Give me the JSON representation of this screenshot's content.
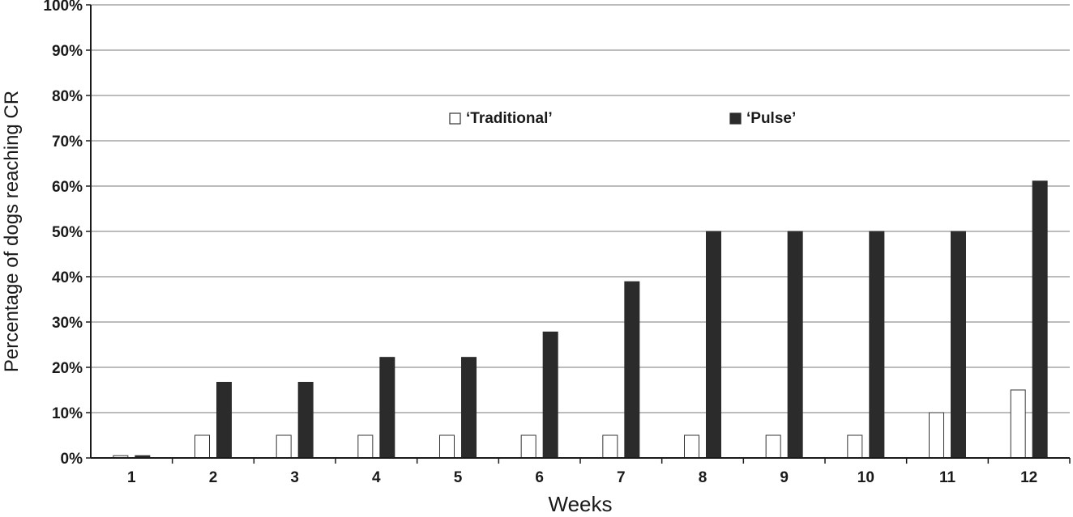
{
  "chart_data": {
    "type": "bar",
    "xlabel": "Weeks",
    "ylabel": "Percentage of dogs reaching CR",
    "categories": [
      "1",
      "2",
      "3",
      "4",
      "5",
      "6",
      "7",
      "8",
      "9",
      "10",
      "11",
      "12"
    ],
    "series": [
      {
        "name": "‘Traditional’",
        "values": [
          0.5,
          5,
          5,
          5,
          5,
          5,
          5,
          5,
          5,
          5,
          10,
          15
        ],
        "color": "#ffffff",
        "stroke": "#333333"
      },
      {
        "name": "‘Pulse’",
        "values": [
          0.5,
          16.7,
          16.7,
          22.2,
          22.2,
          27.8,
          38.9,
          50,
          50,
          50,
          50,
          61.1
        ],
        "color": "#2b2b2b",
        "stroke": "#2b2b2b"
      }
    ],
    "ylim": [
      0,
      100
    ],
    "yticks": [
      0,
      10,
      20,
      30,
      40,
      50,
      60,
      70,
      80,
      90,
      100
    ],
    "ytick_labels": [
      "0%",
      "10%",
      "20%",
      "30%",
      "40%",
      "50%",
      "60%",
      "70%",
      "80%",
      "90%",
      "100%"
    ],
    "grid": true,
    "legend_position": "upper-middle"
  }
}
